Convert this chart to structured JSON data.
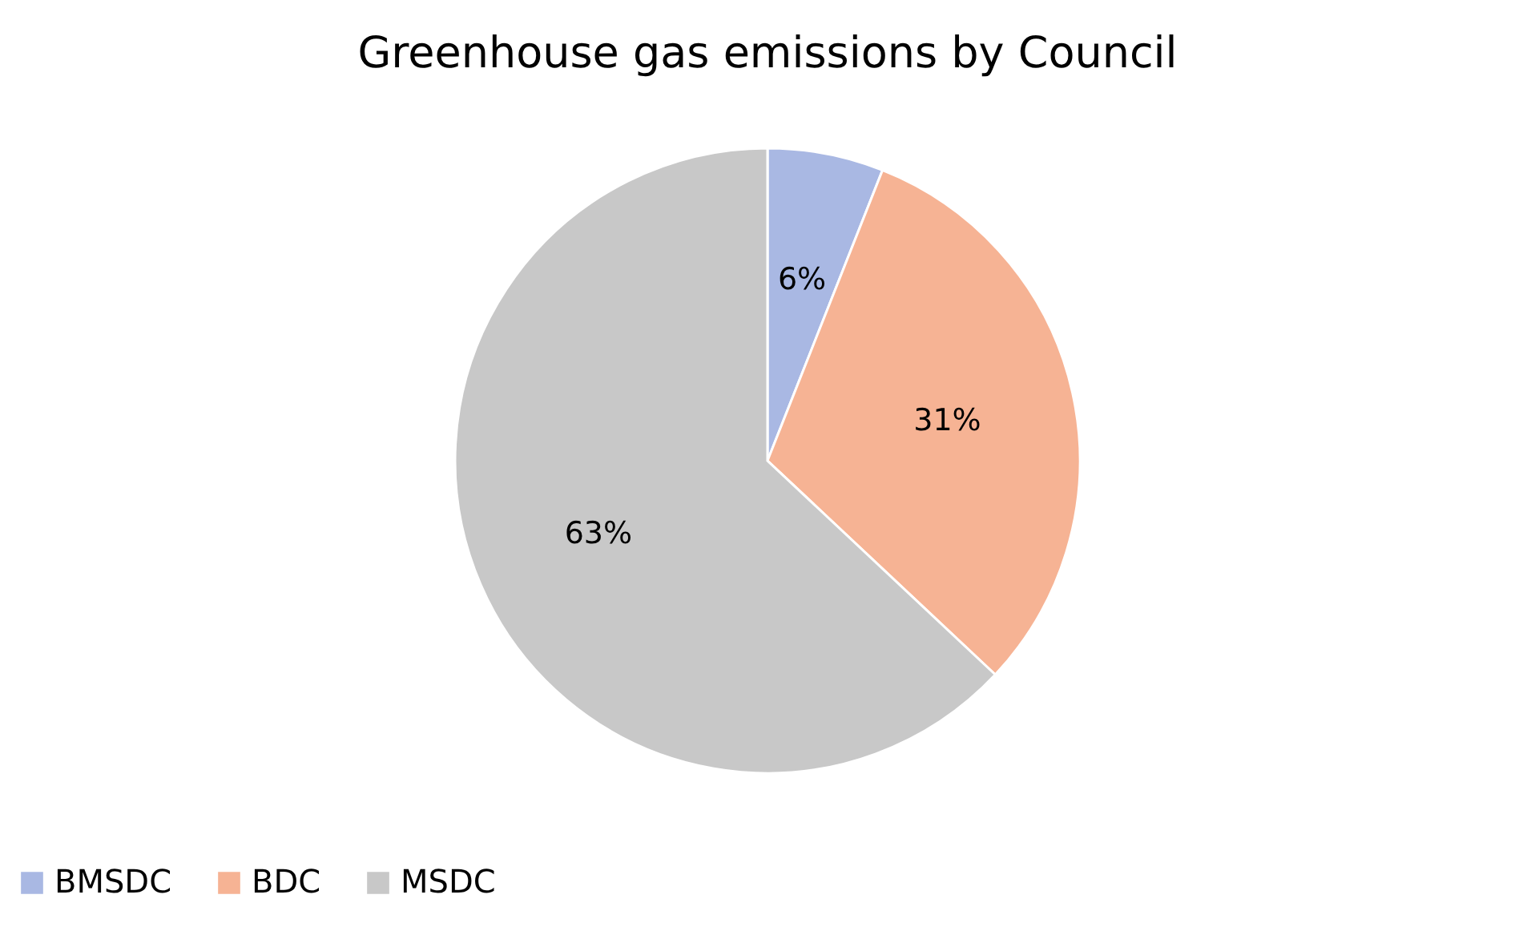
{
  "chart_data": {
    "type": "pie",
    "title": "Greenhouse gas emissions by Council",
    "categories": [
      "BMSDC",
      "BDC",
      "MSDC"
    ],
    "values": [
      6,
      31,
      63
    ],
    "colors": [
      "#a9b8e3",
      "#f6b394",
      "#c8c8c8"
    ],
    "value_labels": [
      "6%",
      "31%",
      "63%"
    ],
    "legend": "bottom"
  }
}
